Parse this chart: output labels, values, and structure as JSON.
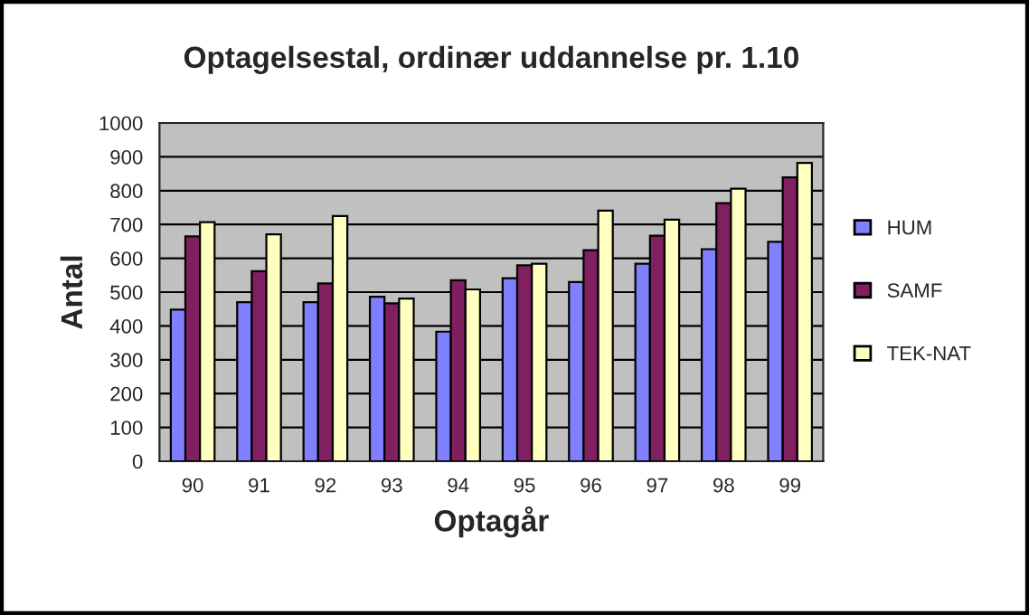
{
  "chart_data": {
    "type": "bar",
    "title": "Optagelsestal, ordinær uddannelse pr. 1.10",
    "xlabel": "Optagår",
    "ylabel": "Antal",
    "categories": [
      "90",
      "91",
      "92",
      "93",
      "94",
      "95",
      "96",
      "97",
      "98",
      "99"
    ],
    "series": [
      {
        "name": "HUM",
        "color": "#8080ff",
        "values": [
          448,
          470,
          470,
          486,
          383,
          541,
          530,
          584,
          627,
          649
        ]
      },
      {
        "name": "SAMF",
        "color": "#802060",
        "values": [
          665,
          562,
          526,
          467,
          535,
          579,
          624,
          667,
          763,
          839
        ]
      },
      {
        "name": "TEK-NAT",
        "color": "#ffffc0",
        "values": [
          707,
          671,
          725,
          481,
          508,
          584,
          741,
          714,
          806,
          882
        ]
      }
    ],
    "ylim": [
      0,
      1000
    ],
    "yticks": [
      0,
      100,
      200,
      300,
      400,
      500,
      600,
      700,
      800,
      900,
      1000
    ],
    "grid": "y",
    "legend": "right"
  }
}
